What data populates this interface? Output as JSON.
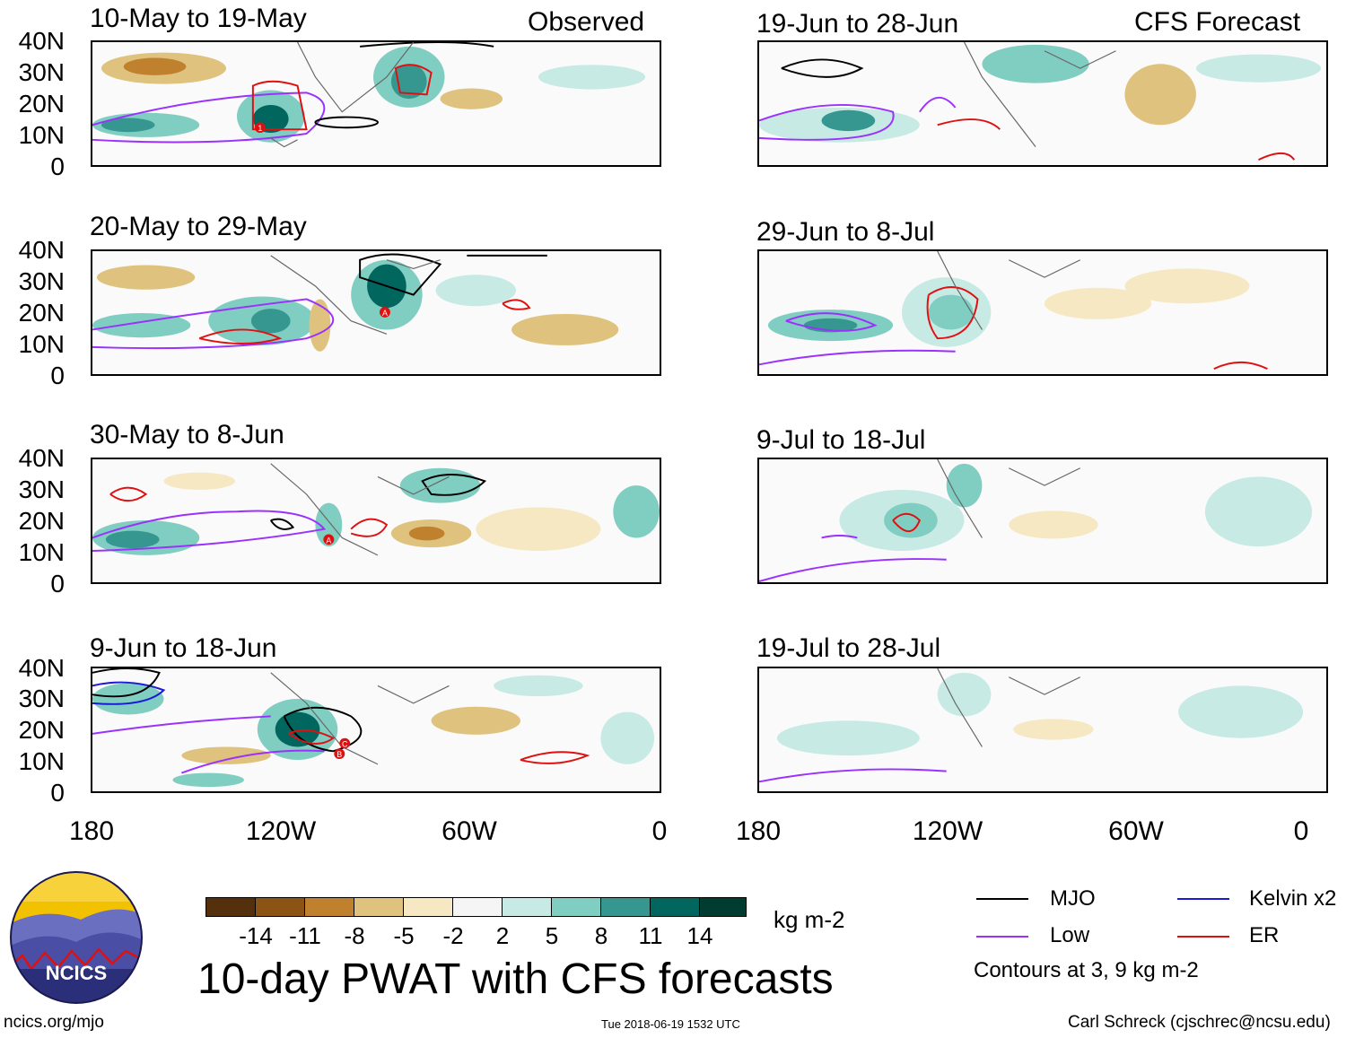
{
  "panel_titles": {
    "p1": "10-May to 19-May",
    "p2": "20-May to 29-May",
    "p3": "30-May to 8-Jun",
    "p4": "9-Jun to 18-Jun",
    "p5": "19-Jun to 28-Jun",
    "p6": "29-Jun to 8-Jul",
    "p7": "9-Jul to 18-Jul",
    "p8": "19-Jul to 28-Jul"
  },
  "column_headers": {
    "observed": "Observed",
    "forecast": "CFS Forecast"
  },
  "lat_labels": [
    "40N",
    "30N",
    "20N",
    "10N",
    "0"
  ],
  "lon_labels": [
    "180",
    "120W",
    "60W",
    "0"
  ],
  "colorbar": {
    "labels": [
      "-14",
      "-11",
      "-8",
      "-5",
      "-2",
      "2",
      "5",
      "8",
      "11",
      "14"
    ],
    "colors": [
      "#54300c",
      "#8c5414",
      "#bf812d",
      "#dfc27d",
      "#f6e8c3",
      "#f5f5f5",
      "#c7eae5",
      "#80cdc1",
      "#35978f",
      "#01665e",
      "#003c30"
    ],
    "units": "kg m-2"
  },
  "main_title": "10-day PWAT with CFS forecasts",
  "legend": {
    "items": [
      {
        "label": "MJO",
        "color": "#000000"
      },
      {
        "label": "Kelvin x2",
        "color": "#1a1ad6"
      },
      {
        "label": "Low",
        "color": "#9b30ff"
      },
      {
        "label": "ER",
        "color": "#e01010"
      }
    ],
    "note": "Contours at 3, 9 kg m-2"
  },
  "logo_text": "NCICS",
  "footer": {
    "url": "ncics.org/mjo",
    "timestamp": "Tue 2018-06-19 1532 UTC",
    "credit": "Carl Schreck (cjschrec@ncsu.edu)"
  },
  "storm_markers": {
    "p1": [
      "1"
    ],
    "p2": [
      "A"
    ],
    "p3": [
      "A"
    ],
    "p4": [
      "C",
      "B"
    ]
  }
}
